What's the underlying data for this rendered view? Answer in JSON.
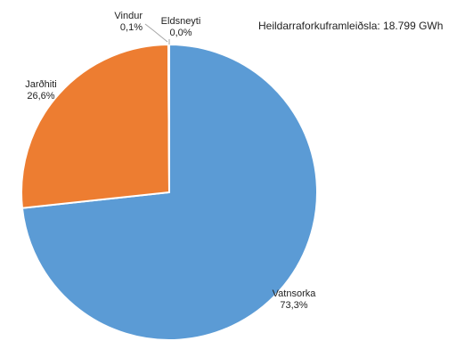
{
  "chart_data": {
    "type": "pie",
    "annotation": "Heildarraforkuframleiðsla: 18.799 GWh",
    "slices": [
      {
        "name": "Vatnsorka",
        "value": 73.3,
        "label": "73,3%",
        "color": "#5b9bd5"
      },
      {
        "name": "Jarðhiti",
        "value": 26.6,
        "label": "26,6%",
        "color": "#ed7d31"
      },
      {
        "name": "Vindur",
        "value": 0.1,
        "label": "0,1%",
        "color": "#a5a5a5"
      },
      {
        "name": "Eldsneyti",
        "value": 0.0,
        "label": "0,0%",
        "color": "#ffc000"
      }
    ]
  }
}
